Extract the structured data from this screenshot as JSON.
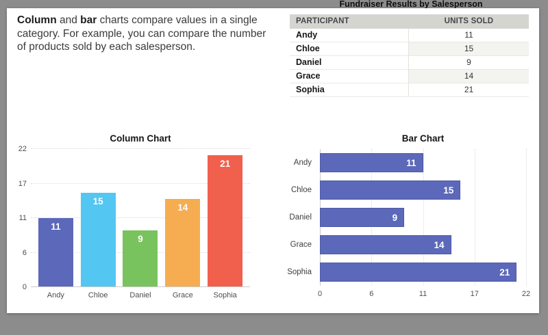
{
  "header": {
    "title": "Fundraiser Results by Salesperson"
  },
  "description": {
    "line1_parts": [
      {
        "text": "Column",
        "bold": true
      },
      {
        "text": " and ",
        "bold": false
      },
      {
        "text": "bar",
        "bold": true
      },
      {
        "text": " charts compare values in a single",
        "bold": false
      }
    ],
    "line2": "category. For example, you can compare the number",
    "line3": "of products sold by each salesperson."
  },
  "table": {
    "headers": [
      "PARTICIPANT",
      "UNITS SOLD"
    ],
    "rows": [
      {
        "participant": "Andy",
        "units_sold": "11"
      },
      {
        "participant": "Chloe",
        "units_sold": "15"
      },
      {
        "participant": "Daniel",
        "units_sold": "9"
      },
      {
        "participant": "Grace",
        "units_sold": "14"
      },
      {
        "participant": "Sophia",
        "units_sold": "21"
      }
    ]
  },
  "chart_data": [
    {
      "type": "bar",
      "orientation": "vertical",
      "title": "Column Chart",
      "categories": [
        "Andy",
        "Chloe",
        "Daniel",
        "Grace",
        "Sophia"
      ],
      "values": [
        11,
        15,
        9,
        14,
        21
      ],
      "bar_colors": [
        "#5c68ba",
        "#53c6f1",
        "#78c35d",
        "#f6ad51",
        "#f1604d"
      ],
      "axis_max": 22,
      "ylim": [
        0,
        22
      ],
      "ticks": [
        {
          "label": "0",
          "pos": 0
        },
        {
          "label": "6",
          "pos": 0.25
        },
        {
          "label": "11",
          "pos": 0.5
        },
        {
          "label": "17",
          "pos": 0.75
        },
        {
          "label": "22",
          "pos": 1
        }
      ],
      "grid": "horizontal dotted",
      "value_labels": "inside top, white bold"
    },
    {
      "type": "bar",
      "orientation": "horizontal",
      "title": "Bar Chart",
      "categories": [
        "Andy",
        "Chloe",
        "Daniel",
        "Grace",
        "Sophia"
      ],
      "values": [
        11,
        15,
        9,
        14,
        21
      ],
      "bar_color": "#5c68ba",
      "axis_max": 22,
      "xlim": [
        0,
        22
      ],
      "ticks": [
        {
          "label": "0",
          "pos": 0
        },
        {
          "label": "6",
          "pos": 0.25
        },
        {
          "label": "11",
          "pos": 0.5
        },
        {
          "label": "17",
          "pos": 0.75
        },
        {
          "label": "22",
          "pos": 1
        }
      ],
      "grid": "vertical dotted",
      "value_labels": "inside right, white bold"
    }
  ],
  "colors": {
    "background": "#8c8c8c",
    "panel": "#ffffff",
    "table_header_bg": "#d5d5d0",
    "table_alt_row_bg": "#f3f3f0",
    "gridline": "#dadada",
    "axis_line": "#c9c9c9"
  }
}
